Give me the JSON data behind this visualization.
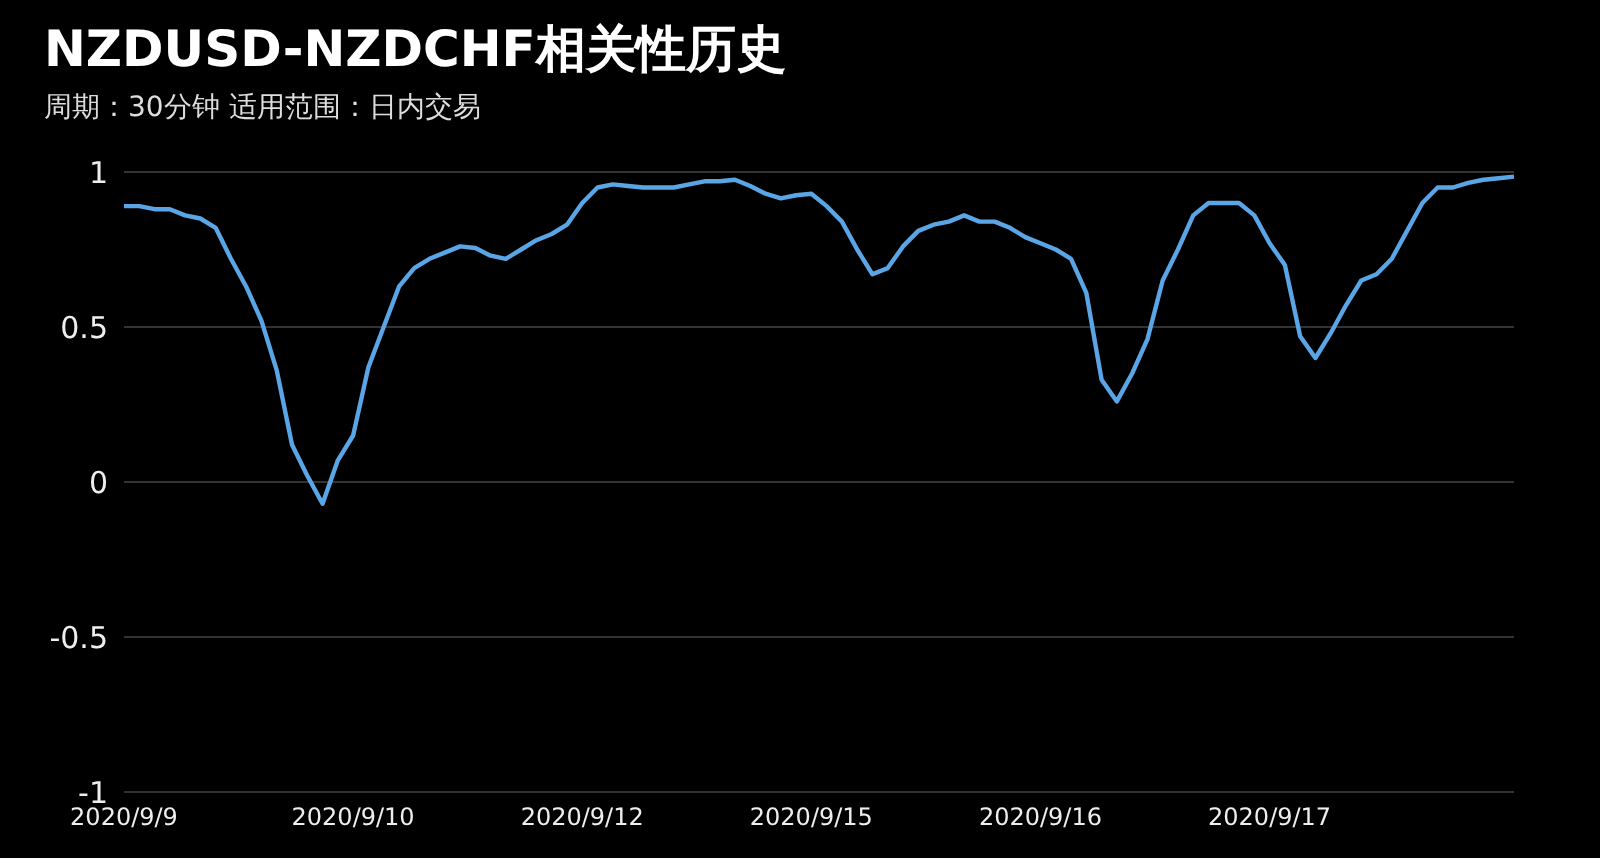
{
  "chart_data": {
    "type": "line",
    "title": "NZDUSD-NZDCHF相关性历史",
    "subtitle": "周期：30分钟 适用范围：日内交易",
    "categories": [
      "2020/9/9",
      null,
      null,
      null,
      null,
      null,
      null,
      null,
      null,
      null,
      null,
      null,
      null,
      null,
      null,
      "2020/9/10",
      null,
      null,
      null,
      null,
      null,
      null,
      null,
      null,
      null,
      null,
      null,
      null,
      null,
      null,
      "2020/9/12",
      null,
      null,
      null,
      null,
      null,
      null,
      null,
      null,
      null,
      null,
      null,
      null,
      null,
      null,
      "2020/9/15",
      null,
      null,
      null,
      null,
      null,
      null,
      null,
      null,
      null,
      null,
      null,
      null,
      null,
      null,
      "2020/9/16",
      null,
      null,
      null,
      null,
      null,
      null,
      null,
      null,
      null,
      null,
      null,
      null,
      null,
      null,
      "2020/9/17",
      null,
      null,
      null,
      null,
      null,
      null,
      null,
      null,
      null,
      null,
      null,
      null,
      null,
      null,
      null,
      null
    ],
    "series": [
      {
        "color": "#5aa5e6",
        "values": [
          0.89,
          0.89,
          0.88,
          0.88,
          0.86,
          0.85,
          0.82,
          0.72,
          0.63,
          0.52,
          0.36,
          0.12,
          0.02,
          -0.07,
          0.07,
          0.15,
          0.37,
          0.5,
          0.63,
          0.69,
          0.72,
          0.74,
          0.76,
          0.755,
          0.73,
          0.72,
          0.75,
          0.78,
          0.8,
          0.83,
          0.9,
          0.95,
          0.96,
          0.955,
          0.95,
          0.95,
          0.95,
          0.96,
          0.97,
          0.97,
          0.975,
          0.955,
          0.93,
          0.915,
          0.925,
          0.93,
          0.89,
          0.84,
          0.75,
          0.67,
          0.69,
          0.76,
          0.81,
          0.83,
          0.84,
          0.86,
          0.84,
          0.84,
          0.82,
          0.79,
          0.77,
          0.75,
          0.72,
          0.61,
          0.33,
          0.26,
          0.35,
          0.46,
          0.65,
          0.75,
          0.86,
          0.9,
          0.9,
          0.9,
          0.86,
          0.77,
          0.7,
          0.47,
          0.4,
          0.48,
          0.57,
          0.65,
          0.67,
          0.72,
          0.81,
          0.9,
          0.95,
          0.95,
          0.965,
          0.975,
          0.98,
          0.985
        ]
      }
    ],
    "ylim": [
      -1,
      1
    ],
    "yticks": [
      -1,
      -0.5,
      0,
      0.5,
      1
    ],
    "grid": "y",
    "marker": "none",
    "line_style": "solid"
  }
}
